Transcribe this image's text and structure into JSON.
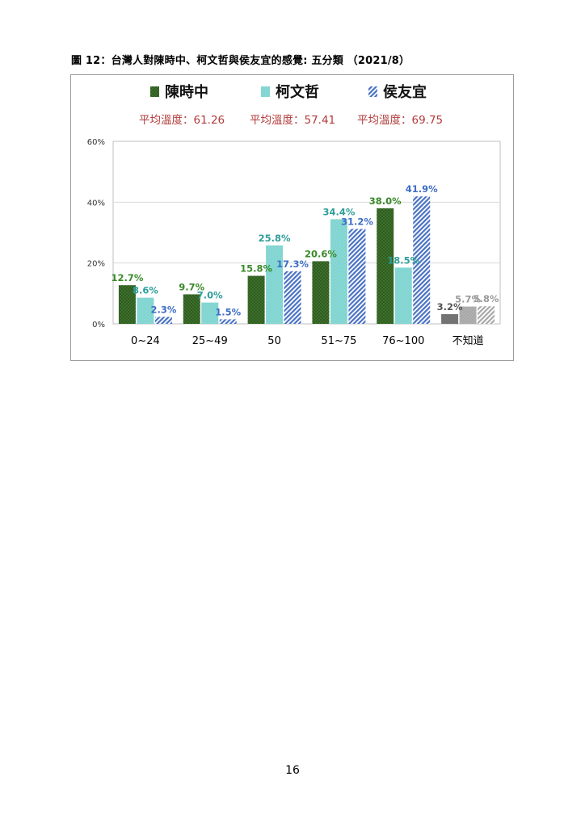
{
  "caption": "圖 12：台灣人對陳時中、柯文哲與侯友宜的感覺: 五分類 （2021/8）",
  "page_number": "16",
  "chart_data": {
    "type": "bar",
    "categories": [
      "0~24",
      "25~49",
      "50",
      "51~75",
      "76~100",
      "不知道"
    ],
    "ylim": [
      0,
      60
    ],
    "yticks": [
      0,
      20,
      40,
      60
    ],
    "ytick_labels": [
      "0%",
      "20%",
      "40%",
      "60%"
    ],
    "grid": "horizontal",
    "legend_placement": "top",
    "series": [
      {
        "name": "陳時中",
        "values": [
          12.7,
          9.7,
          15.8,
          20.6,
          38.0,
          3.2
        ],
        "labels": [
          "12.7%",
          "9.7%",
          "15.8%",
          "20.6%",
          "38.0%",
          "3.2%"
        ],
        "color": "#2e5e1e",
        "label_color": "#3a8a2a",
        "average_text": "平均溫度：61.26"
      },
      {
        "name": "柯文哲",
        "values": [
          8.6,
          7.0,
          25.8,
          34.4,
          18.5,
          5.7
        ],
        "labels": [
          "8.6%",
          "7.0%",
          "25.8%",
          "34.4%",
          "18.5%",
          "5.7%"
        ],
        "color": "#7fd4d0",
        "label_color": "#2f9f9a",
        "average_text": "平均溫度：57.41"
      },
      {
        "name": "侯友宜",
        "values": [
          2.3,
          1.5,
          17.3,
          31.2,
          41.9,
          5.8
        ],
        "labels": [
          "2.3%",
          "1.5%",
          "17.3%",
          "31.2%",
          "41.9%",
          "5.8%"
        ],
        "color": "#4a72c4",
        "label_color": "#3f6ec8",
        "average_text": "平均溫度：69.75"
      }
    ],
    "unknown_category_colors": [
      "#6e6e6e",
      "#a8a8a8",
      "#bdbdbd"
    ],
    "unknown_label_colors": [
      "#555555",
      "#9a9a9a",
      "#9a9a9a"
    ],
    "average_text_color": "#b23a3a"
  }
}
